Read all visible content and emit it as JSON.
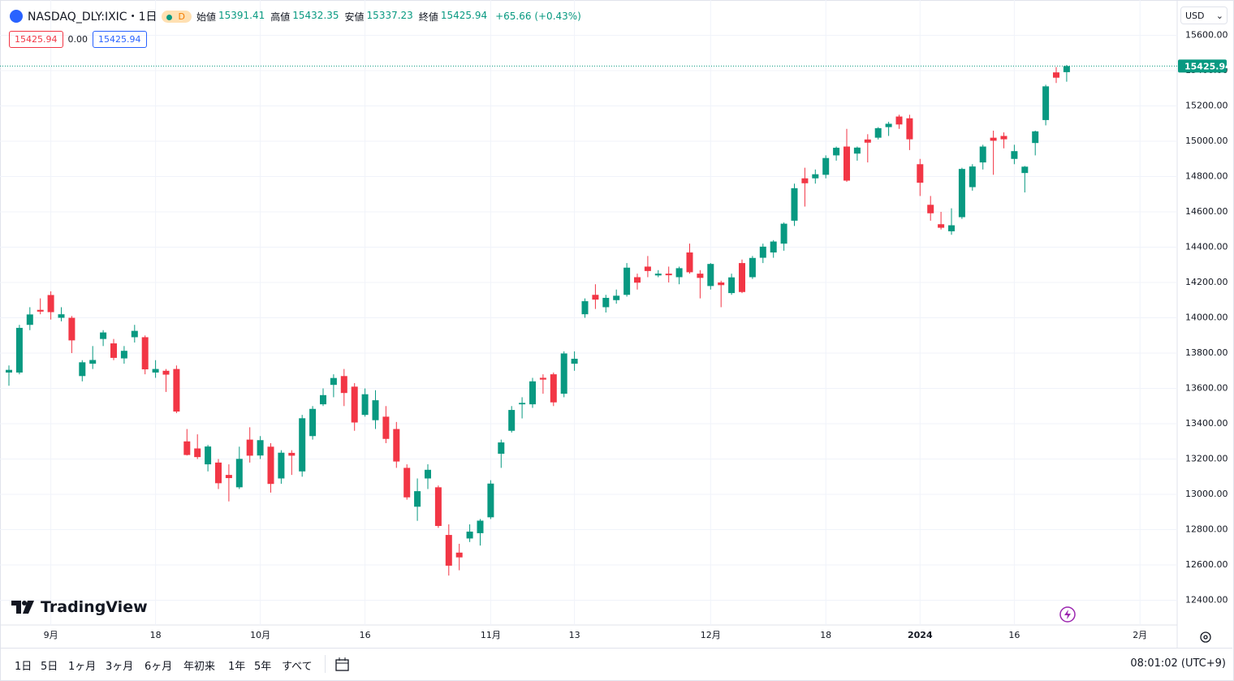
{
  "chart_data": {
    "type": "candlestick",
    "symbol": "NASDAQ_DLY:IXIC・1日",
    "badge": "D",
    "legend": [
      {
        "label": "始値",
        "value": 15391.41
      },
      {
        "label": "高値",
        "value": 15432.35
      },
      {
        "label": "安値",
        "value": 15337.23
      },
      {
        "label": "終値",
        "value": 15425.94
      }
    ],
    "change": "+65.66 (+0.43%)",
    "boxes": [
      "15425.94",
      "0.00",
      "15425.94"
    ],
    "currency": "USD",
    "last_price": 15425.94,
    "logo": "TradingView",
    "up_color": "#089981",
    "down_color": "#f23645",
    "grid": true,
    "categories": [
      null,
      null,
      null,
      null,
      "9月",
      null,
      null,
      null,
      null,
      null,
      null,
      null,
      null,
      null,
      "18",
      null,
      null,
      null,
      null,
      null,
      null,
      null,
      null,
      null,
      "10月",
      null,
      null,
      null,
      null,
      null,
      null,
      null,
      null,
      null,
      "16",
      null,
      null,
      null,
      null,
      null,
      null,
      null,
      null,
      null,
      null,
      null,
      "11月",
      null,
      null,
      null,
      null,
      null,
      null,
      null,
      "13",
      null,
      null,
      null,
      null,
      null,
      null,
      null,
      null,
      null,
      null,
      null,
      null,
      "12月",
      null,
      null,
      null,
      null,
      null,
      null,
      null,
      null,
      null,
      null,
      "18",
      null,
      null,
      null,
      null,
      null,
      null,
      null,
      null,
      "2024",
      null,
      null,
      null,
      null,
      null,
      null,
      null,
      null,
      "16",
      null,
      null,
      null,
      null,
      null,
      null,
      null,
      null,
      null,
      null,
      null,
      "2月"
    ],
    "open": [
      13690,
      13690,
      13960,
      14045,
      14129,
      14000,
      14000,
      13670,
      13740,
      13880,
      13855,
      13770,
      13890,
      13890,
      13690,
      13700,
      13710,
      13300,
      13260,
      13170,
      13180,
      13110,
      13040,
      13310,
      13220,
      13270,
      13090,
      13235,
      13130,
      13330,
      13510,
      13620,
      13670,
      13610,
      13450,
      13420,
      13440,
      13370,
      13150,
      12930,
      13090,
      13040,
      12770,
      12670,
      12750,
      12780,
      12870,
      13230,
      13360,
      13510,
      13510,
      13660,
      13680,
      13570,
      13740,
      14020,
      14130,
      14060,
      14100,
      14130,
      14230,
      14290,
      14240,
      14250,
      14230,
      14370,
      14250,
      14180,
      14200,
      14140,
      14310,
      14230,
      14340,
      14370,
      14420,
      14550,
      14790,
      14790,
      14810,
      14920,
      14970,
      14930,
      15010,
      15020,
      15080,
      15140,
      15130,
      14870,
      14640,
      14530,
      14490,
      14570,
      14740,
      14880,
      15020,
      15030,
      14900,
      14820,
      14990,
      15120,
      15390,
      15391.41,
      null,
      null,
      null,
      null,
      null,
      null,
      null
    ],
    "high": [
      13730,
      13960,
      14060,
      14110,
      14150,
      14060,
      14010,
      13760,
      13840,
      13930,
      13880,
      13840,
      13960,
      13900,
      13760,
      13710,
      13730,
      13370,
      13340,
      13280,
      13200,
      13170,
      13270,
      13380,
      13330,
      13290,
      13250,
      13250,
      13450,
      13500,
      13600,
      13680,
      13710,
      13630,
      13600,
      13590,
      13500,
      13410,
      13170,
      13090,
      13170,
      13050,
      12830,
      12720,
      12830,
      12860,
      13080,
      13310,
      13500,
      13550,
      13660,
      13680,
      13690,
      13810,
      13810,
      14110,
      14190,
      14130,
      14160,
      14310,
      14250,
      14350,
      14270,
      14290,
      14290,
      14420,
      14270,
      14310,
      14210,
      14250,
      14330,
      14350,
      14420,
      14440,
      14540,
      14760,
      14850,
      14840,
      14920,
      14970,
      15070,
      14970,
      15040,
      15080,
      15110,
      15150,
      15150,
      14900,
      14690,
      14600,
      14620,
      14850,
      14870,
      14980,
      15060,
      15050,
      14980,
      14860,
      15060,
      15320,
      15420,
      15432.35,
      null,
      null,
      null,
      null,
      null,
      null,
      null
    ],
    "low": [
      13615,
      13680,
      13930,
      14020,
      13990,
      13980,
      13800,
      13640,
      13710,
      13840,
      13760,
      13740,
      13860,
      13680,
      13660,
      13580,
      13460,
      13220,
      13200,
      13130,
      13030,
      12960,
      13030,
      13180,
      13200,
      13010,
      13060,
      13110,
      13100,
      13310,
      13500,
      13550,
      13500,
      13360,
      13440,
      13370,
      13290,
      13150,
      12970,
      12850,
      13030,
      12810,
      12540,
      12570,
      12730,
      12710,
      12860,
      13150,
      13350,
      13430,
      13490,
      13570,
      13500,
      13550,
      13700,
      14000,
      14050,
      14030,
      14080,
      14120,
      14160,
      14230,
      14230,
      14200,
      14190,
      14250,
      14110,
      14160,
      14060,
      14130,
      14140,
      14220,
      14310,
      14340,
      14380,
      14520,
      14630,
      14760,
      14790,
      14890,
      14770,
      14890,
      14880,
      15010,
      15030,
      15070,
      14950,
      14690,
      14550,
      14500,
      14470,
      14560,
      14720,
      14840,
      14810,
      14960,
      14870,
      14710,
      14920,
      15090,
      15330,
      15337.23,
      null,
      null,
      null,
      null,
      null,
      null,
      null
    ],
    "close": [
      13705,
      13943,
      14019,
      14035,
      14032,
      14020,
      13872,
      13748,
      13761,
      13917,
      13773,
      13813,
      13926,
      13708,
      13710,
      13678,
      13469,
      13223,
      13211,
      13271,
      13063,
      13092,
      13201,
      13219,
      13307,
      13059,
      13236,
      13219,
      13431,
      13484,
      13562,
      13659,
      13574,
      13407,
      13567,
      13533,
      13314,
      13186,
      12983,
      13018,
      13139,
      12821,
      12596,
      12643,
      12789,
      12851,
      13061,
      13294,
      13478,
      13518,
      13640,
      13650,
      13521,
      13798,
      13768,
      14094,
      14103,
      14113,
      14125,
      14284,
      14199,
      14265,
      14250,
      14241,
      14281,
      14258,
      14226,
      14305,
      14185,
      14229,
      14146,
      14339,
      14403,
      14432,
      14533,
      14734,
      14762,
      14813,
      14905,
      14963,
      14777,
      14964,
      14992,
      15074,
      15099,
      15095,
      15011,
      14765,
      14592,
      14510,
      14524,
      14843,
      14857,
      14970,
      15003,
      15011,
      14944,
      14856,
      15056,
      15311,
      15360,
      15425.94,
      null,
      null,
      null,
      null,
      null,
      null,
      null
    ],
    "ylim": [
      12260,
      15800
    ],
    "yticks": [
      {
        "value": 12400,
        "label": "12400.00"
      },
      {
        "value": 12600,
        "label": "12600.00"
      },
      {
        "value": 12800,
        "label": "12800.00"
      },
      {
        "value": 13000,
        "label": "13000.00"
      },
      {
        "value": 13200,
        "label": "13200.00"
      },
      {
        "value": 13400,
        "label": "13400.00"
      },
      {
        "value": 13600,
        "label": "13600.00"
      },
      {
        "value": 13800,
        "label": "13800.00"
      },
      {
        "value": 14000,
        "label": "14000.00"
      },
      {
        "value": 14200,
        "label": "14200.00"
      },
      {
        "value": 14400,
        "label": "14400.00"
      },
      {
        "value": 14600,
        "label": "14600.00"
      },
      {
        "value": 14800,
        "label": "14800.00"
      },
      {
        "value": 15000,
        "label": "15000.00"
      },
      {
        "value": 15200,
        "label": "15200.00"
      },
      {
        "value": 15400,
        "label": "15400.00"
      },
      {
        "value": 15600,
        "label": "15600.00"
      }
    ]
  },
  "toolbar": {
    "ranges": [
      "1日",
      "5日",
      "1ヶ月",
      "3ヶ月",
      "6ヶ月",
      "年初来",
      "1年",
      "5年",
      "すべて"
    ],
    "clock": "08:01:02 (UTC+9)"
  }
}
